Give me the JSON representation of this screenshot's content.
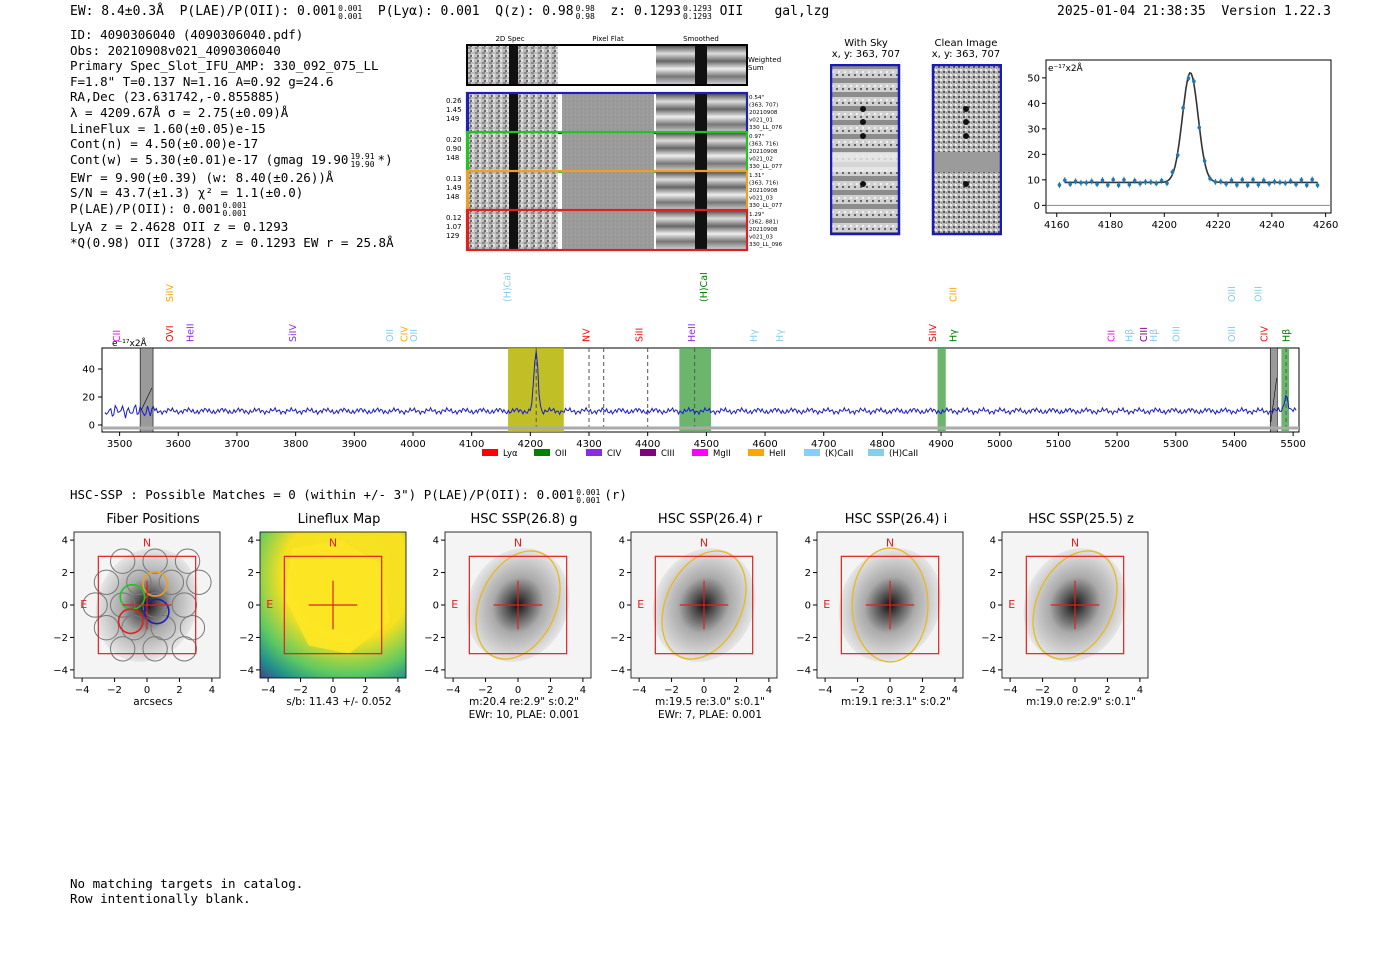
{
  "header": {
    "ew": "EW: 8.4±0.3Å",
    "plae_label": "P(LAE)/P(OII): 0.001",
    "plae_hi": "0.001",
    "plae_lo": "0.001",
    "plya": "P(Lyα): 0.001",
    "qz_label": "Q(z): 0.98",
    "qz_hi": "0.98",
    "qz_lo": "0.98",
    "z_label": "z: 0.1293",
    "z_hi": "0.1293",
    "z_lo": "0.1293",
    "z_type": "OII",
    "flags": "gal,lzg",
    "datetime": "2025-01-04 21:38:35",
    "version": "Version 1.22.3"
  },
  "info": {
    "id": "ID: 4090306040 (4090306040.pdf)",
    "obs": "Obs: 20210908v021_4090306040",
    "primary": "Primary Spec_Slot_IFU_AMP: 330_092_075_LL",
    "params": "F=1.8\"  T=0.137  N=1.16  A=0.92  g=24.6",
    "radec": "RA,Dec (23.631742,-0.855885)",
    "lambda": "λ = 4209.67Å  σ = 2.75(±0.09)Å",
    "lineflux": "LineFlux = 1.60(±0.05)e-15",
    "contn": "Cont(n) = 4.50(±0.00)e-17",
    "contw_main": "Cont(w) = 5.30(±0.01)e-17 (gmag 19.90",
    "contw_hi": "19.91",
    "contw_lo": "19.90",
    "contw_end": "*)",
    "ewr": "EWr = 9.90(±0.39) (w: 8.40(±0.26))Å",
    "sn": "S/N = 43.7(±1.3)  χ² = 1.1(±0.0)",
    "plae_label": "P(LAE)/P(OII): 0.001",
    "plae_hi": "0.001",
    "plae_lo": "0.001",
    "lya": "LyA z = 2.4628   OII z = 0.1293",
    "q_line": "*Q(0.98) OII (3728) z = 0.1293  EW r = 25.8Å"
  },
  "cutouts": {
    "col_titles": [
      "2D Spec",
      "Pixel Flat",
      "Smoothed"
    ],
    "weighted_sum": "Weighted Sum",
    "rows": [
      {
        "left": [
          "0.26",
          "1.45",
          "149"
        ],
        "right": [
          "0.54\"",
          "(363, 707)",
          "20210908",
          "v021_01",
          "330_LL_076"
        ],
        "color": "#1f1fb4"
      },
      {
        "left": [
          "0.20",
          "0.90",
          "148"
        ],
        "right": [
          "0.97\"",
          "(363, 716)",
          "20210908",
          "v021_02",
          "330_LL_077"
        ],
        "color": "#22c322"
      },
      {
        "left": [
          "0.13",
          "1.49",
          "148"
        ],
        "right": [
          "1.31\"",
          "(363, 716)",
          "20210908",
          "v021_03",
          "330_LL_077"
        ],
        "color": "#f0a020"
      },
      {
        "left": [
          "0.12",
          "1.07",
          "129"
        ],
        "right": [
          "1.29\"",
          "(362, 881)",
          "20210908",
          "v021_03",
          "330_LL_096"
        ],
        "color": "#e02020"
      }
    ],
    "with_sky_title": "With Sky",
    "with_sky_coords": "x, y: 363, 707",
    "clean_title": "Clean Image",
    "clean_coords": "x, y: 363, 707"
  },
  "zoom_plot": {
    "ylabel": "e⁻¹⁷x2Å",
    "x_ticks": [
      "4160",
      "4180",
      "4200",
      "4220",
      "4240",
      "4260"
    ],
    "y_ticks": [
      "0",
      "10",
      "20",
      "30",
      "40",
      "50"
    ],
    "xlim": [
      4156,
      4262
    ],
    "ylim": [
      -3,
      57
    ]
  },
  "chart_data": {
    "type": "line",
    "title": "",
    "ylabel": "e⁻¹⁷x2Å",
    "xlabel": "",
    "xlim": [
      3470,
      5510
    ],
    "ylim": [
      -5,
      55
    ],
    "x_ticks": [
      "3500",
      "3600",
      "3700",
      "3800",
      "3900",
      "4000",
      "4100",
      "4200",
      "4300",
      "4400",
      "4500",
      "4600",
      "4700",
      "4800",
      "4900",
      "5000",
      "5100",
      "5200",
      "5300",
      "5400",
      "5500"
    ],
    "y_ticks": [
      "0",
      "20",
      "40"
    ],
    "continuum_level": 10,
    "emission_line": {
      "center": 4209.67,
      "peak": 52,
      "sigma": 2.75
    },
    "secondary_line": {
      "center": 5488,
      "peak": 22
    },
    "highlight_bands": [
      {
        "from": 4162,
        "to": 4257,
        "color": "#b5b500"
      },
      {
        "from": 4454,
        "to": 4508,
        "color": "#52a852"
      },
      {
        "from": 4894,
        "to": 4908,
        "color": "#52a852"
      },
      {
        "from": 5480,
        "to": 5493,
        "color": "#52a852"
      }
    ],
    "legend": [
      {
        "label": "Lyα",
        "color": "#ff0000"
      },
      {
        "label": "OII",
        "color": "#008000"
      },
      {
        "label": "CIV",
        "color": "#8a2be2"
      },
      {
        "label": "CIII",
        "color": "#800080"
      },
      {
        "label": "MgII",
        "color": "#ff00ff"
      },
      {
        "label": "HeII",
        "color": "#ffa500"
      },
      {
        "label": "(K)CaII",
        "color": "#87cefa"
      },
      {
        "label": "(H)CaII",
        "color": "#87ceeb"
      }
    ],
    "line_labels": [
      {
        "label": "CII",
        "x": 3495,
        "row": 1,
        "color": "#ff00ff"
      },
      {
        "label": "SiIV",
        "x": 3585,
        "row": 0,
        "color": "#ffa500"
      },
      {
        "label": "OVI",
        "x": 3585,
        "row": 1,
        "color": "#ff0000"
      },
      {
        "label": "HeII",
        "x": 3620,
        "row": 1,
        "color": "#8a2be2"
      },
      {
        "label": "SiIV",
        "x": 3795,
        "row": 1,
        "color": "#8a2be2"
      },
      {
        "label": "OII",
        "x": 3960,
        "row": 1,
        "color": "#87ceeb"
      },
      {
        "label": "CIV",
        "x": 3985,
        "row": 1,
        "color": "#ffa500"
      },
      {
        "label": "OII",
        "x": 4001,
        "row": 1,
        "color": "#87ceeb"
      },
      {
        "label": "(H)CaII",
        "x": 4160,
        "row": 0,
        "color": "#87ceeb"
      },
      {
        "label": "NV",
        "x": 4295,
        "row": 1,
        "color": "#ff0000"
      },
      {
        "label": "SiII",
        "x": 4385,
        "row": 1,
        "color": "#ff0000"
      },
      {
        "label": "HeII",
        "x": 4475,
        "row": 1,
        "color": "#8a2be2"
      },
      {
        "label": "(H)CaII",
        "x": 4495,
        "row": 0,
        "color": "#008000"
      },
      {
        "label": "Hγ",
        "x": 4580,
        "row": 1,
        "color": "#87ceeb"
      },
      {
        "label": "Hγ",
        "x": 4625,
        "row": 1,
        "color": "#87ceeb"
      },
      {
        "label": "SiIV",
        "x": 4885,
        "row": 1,
        "color": "#ff0000"
      },
      {
        "label": "CIII",
        "x": 4920,
        "row": 0,
        "color": "#ffa500"
      },
      {
        "label": "Hγ",
        "x": 4920,
        "row": 1,
        "color": "#008000"
      },
      {
        "label": "CII",
        "x": 5190,
        "row": 1,
        "color": "#ff00ff"
      },
      {
        "label": "Hβ",
        "x": 5220,
        "row": 1,
        "color": "#87ceeb"
      },
      {
        "label": "CIII",
        "x": 5245,
        "row": 1,
        "color": "#800080"
      },
      {
        "label": "Hβ",
        "x": 5262,
        "row": 1,
        "color": "#87ceeb"
      },
      {
        "label": "OIII",
        "x": 5300,
        "row": 1,
        "color": "#87ceeb"
      },
      {
        "label": "OIII",
        "x": 5395,
        "row": 0,
        "color": "#87ceeb"
      },
      {
        "label": "OIII",
        "x": 5395,
        "row": 1,
        "color": "#87ceeb"
      },
      {
        "label": "OIII",
        "x": 5440,
        "row": 0,
        "color": "#87ceeb"
      },
      {
        "label": "CIV",
        "x": 5450,
        "row": 1,
        "color": "#ff0000"
      },
      {
        "label": "Hβ",
        "x": 5488,
        "row": 1,
        "color": "#008000"
      }
    ]
  },
  "hsc": {
    "header": "HSC-SSP : Possible Matches = 0 (within +/- 3\")  P(LAE)/P(OII): 0.001",
    "plae_hi": "0.001",
    "plae_lo": "0.001",
    "band": "(r)",
    "axis_ticks": [
      "−4",
      "−2",
      "0",
      "2",
      "4"
    ],
    "compass_n": "N",
    "compass_e": "E",
    "panels": [
      {
        "title": "Fiber Positions",
        "cap1": "arcsecs",
        "cap2": ""
      },
      {
        "title": "Lineflux Map",
        "cap1": "s/b: 11.43 +/- 0.052",
        "cap2": ""
      },
      {
        "title": "HSC SSP(26.8) g",
        "cap1": "m:20.4  re:2.9\"  s:0.2\"",
        "cap2": "EWr: 10, PLAE: 0.001"
      },
      {
        "title": "HSC SSP(26.4) r",
        "cap1": "m:19.5  re:3.0\"  s:0.1\"",
        "cap2": "EWr: 7, PLAE: 0.001"
      },
      {
        "title": "HSC SSP(26.4) i",
        "cap1": "m:19.1  re:3.1\"  s:0.2\"",
        "cap2": ""
      },
      {
        "title": "HSC SSP(25.5) z",
        "cap1": "m:19.0  re:2.9\"  s:0.1\"",
        "cap2": ""
      }
    ]
  },
  "footer": {
    "line1": "No matching targets in catalog.",
    "line2": "Row intentionally blank."
  }
}
